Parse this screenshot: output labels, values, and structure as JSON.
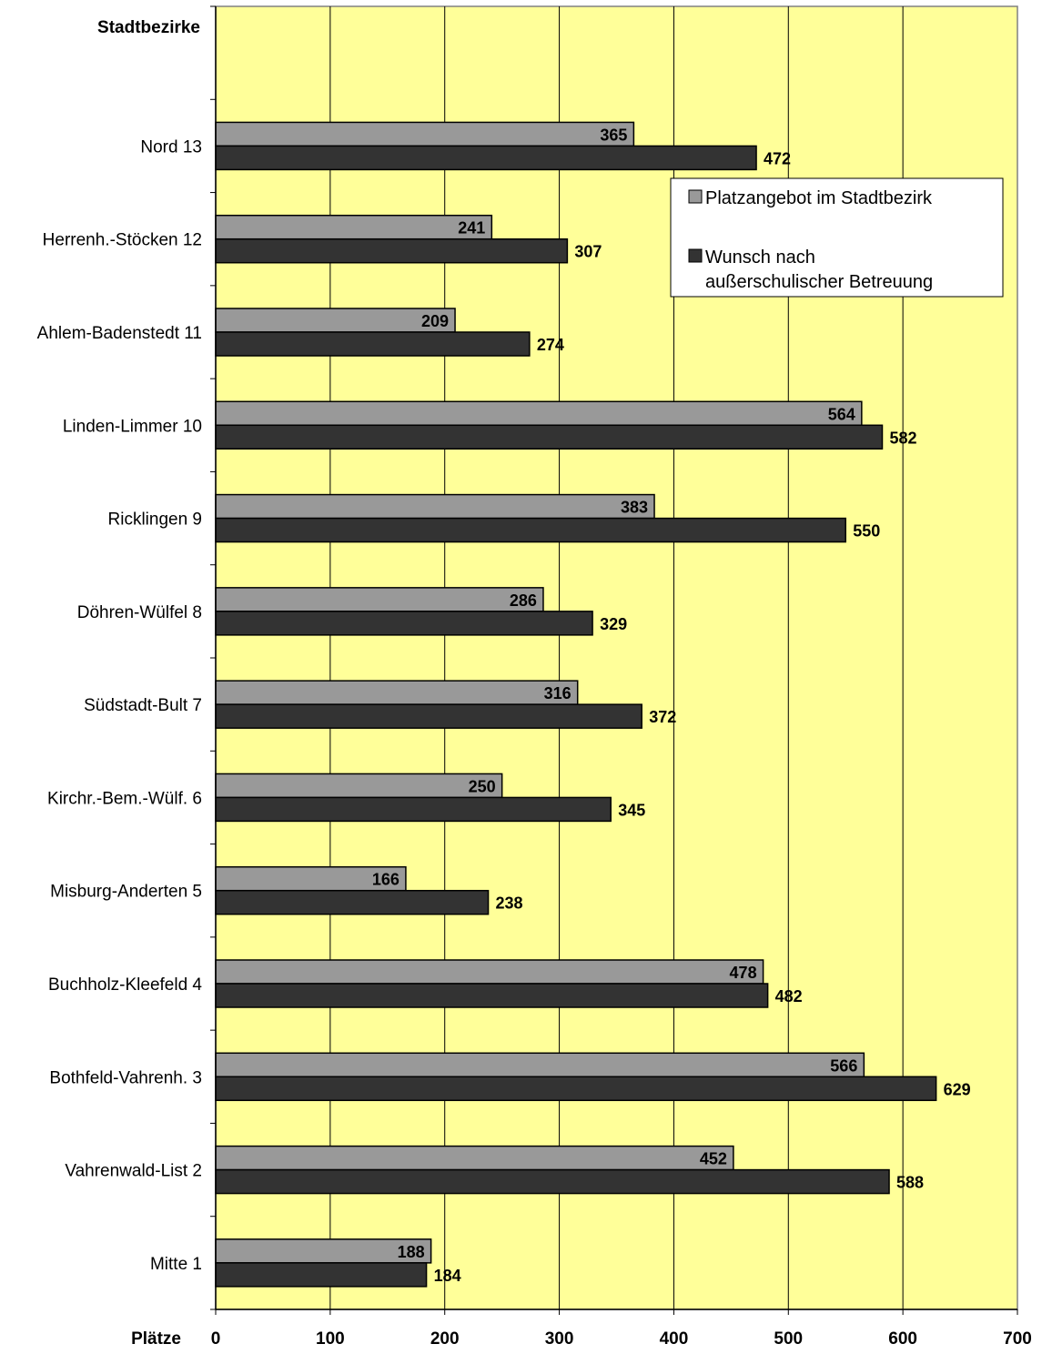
{
  "chart_data": {
    "type": "bar",
    "orientation": "horizontal",
    "y_axis_title": "Stadtbezirke",
    "x_axis_title": "Plätze",
    "categories": [
      "Nord 13",
      "Herrenh.-Stöcken 12",
      "Ahlem-Badenstedt 11",
      "Linden-Limmer 10",
      "Ricklingen 9",
      "Döhren-Wülfel 8",
      "Südstadt-Bult 7",
      "Kirchr.-Bem.-Wülf. 6",
      "Misburg-Anderten 5",
      "Buchholz-Kleefeld 4",
      "Bothfeld-Vahrenh. 3",
      "Vahrenwald-List 2",
      "Mitte 1"
    ],
    "series": [
      {
        "name": "Platzangebot im Stadtbezirk",
        "color": "#999999",
        "values": [
          365,
          241,
          209,
          564,
          383,
          286,
          316,
          250,
          166,
          478,
          566,
          452,
          188
        ]
      },
      {
        "name": "Wunsch nach außerschulischer Betreuung",
        "color": "#333333",
        "values": [
          472,
          307,
          274,
          582,
          550,
          329,
          372,
          345,
          238,
          482,
          629,
          588,
          184
        ]
      }
    ],
    "xlim": [
      0,
      700
    ],
    "x_ticks": [
      0,
      100,
      200,
      300,
      400,
      500,
      600,
      700
    ],
    "grid": true,
    "plot_background": "#ffff99",
    "legend_position": "top-right",
    "legend_lines": [
      [
        "Platzangebot im Stadtbezirk"
      ],
      [
        "Wunsch nach",
        "außerschulischer Betreuung"
      ]
    ]
  }
}
